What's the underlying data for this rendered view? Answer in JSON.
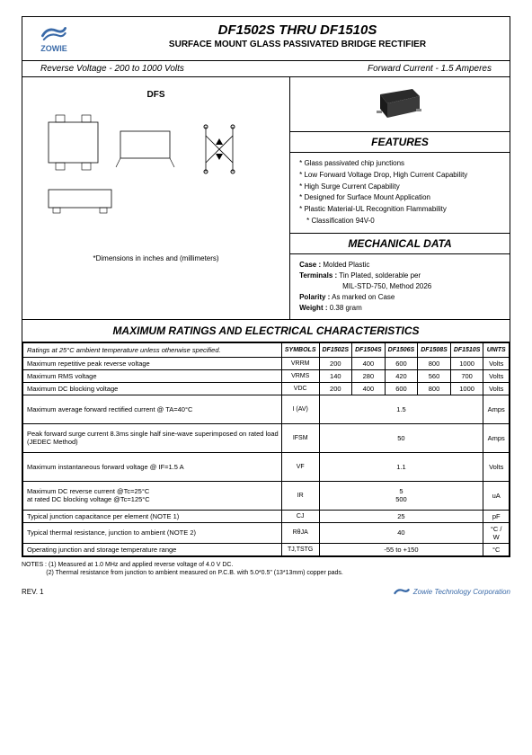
{
  "logo": {
    "brand": "ZOWIE",
    "color": "#3a6aa8"
  },
  "header": {
    "title": "DF1502S  THRU  DF1510S",
    "subtitle": "SURFACE MOUNT GLASS PASSIVATED BRIDGE  RECTIFIER",
    "rev_voltage": "Reverse Voltage - 200 to 1000 Volts",
    "fwd_current": "Forward Current - 1.5 Amperes"
  },
  "package_label": "DFS",
  "dim_note": "*Dimensions in inches and (millimeters)",
  "sections": {
    "features": "FEATURES",
    "mechanical": "MECHANICAL DATA",
    "ratings": "MAXIMUM RATINGS AND ELECTRICAL CHARACTERISTICS"
  },
  "features": [
    "Glass passivated chip junctions",
    "Low Forward Voltage Drop, High Current Capability",
    "High Surge Current Capability",
    "Designed for Surface Mount Application",
    "Plastic Material-UL Recognition Flammability",
    "Classification 94V-0"
  ],
  "mechanical": {
    "case_lbl": "Case :",
    "case": "Molded Plastic",
    "term_lbl": "Terminals :",
    "term": "Tin Plated, solderable per",
    "term2": "MIL-STD-750, Method 2026",
    "pol_lbl": "Polarity :",
    "pol": "As marked on Case",
    "wt_lbl": "Weight :",
    "wt": "0.38 gram"
  },
  "ratings": {
    "note": "Ratings at 25°C ambient temperature unless otherwise specified.",
    "cols": [
      "SYMBOLS",
      "DF1502S",
      "DF1504S",
      "DF1506S",
      "DF1508S",
      "DF1510S",
      "UNITS"
    ],
    "rows": [
      {
        "p": "Maximum repetitive peak reverse voltage",
        "s": "VRRM",
        "v": [
          "200",
          "400",
          "600",
          "800",
          "1000"
        ],
        "u": "Volts"
      },
      {
        "p": "Maximum RMS voltage",
        "s": "VRMS",
        "v": [
          "140",
          "280",
          "420",
          "560",
          "700"
        ],
        "u": "Volts"
      },
      {
        "p": "Maximum DC blocking voltage",
        "s": "VDC",
        "v": [
          "200",
          "400",
          "600",
          "800",
          "1000"
        ],
        "u": "Volts"
      },
      {
        "p": "Maximum average forward rectified current @ TA=40°C",
        "s": "I (AV)",
        "span": "1.5",
        "u": "Amps",
        "tall": true
      },
      {
        "p": "Peak forward surge current 8.3ms single half sine-wave superimposed on rated load (JEDEC Method)",
        "s": "IFSM",
        "span": "50",
        "u": "Amps",
        "tall": true
      },
      {
        "p": "Maximum instantaneous forward voltage @ IF=1.5 A",
        "s": "VF",
        "span": "1.1",
        "u": "Volts",
        "tall": true
      },
      {
        "p": "Maximum DC reverse current            @Tc=25°C\nat rated DC blocking voltage           @Tc=125°C",
        "s": "IR",
        "span": "5\n500",
        "u": "uA",
        "tall": true,
        "twoLine": true
      },
      {
        "p": "Typical junction capacitance  per element (NOTE 1)",
        "s": "CJ",
        "span": "25",
        "u": "pF"
      },
      {
        "p": "Typical thermal resistance, junction to ambient (NOTE 2)",
        "s": "RθJA",
        "span": "40",
        "u": "°C / W"
      },
      {
        "p": "Operating junction and storage temperature range",
        "s": "TJ,TSTG",
        "span": "-55 to +150",
        "u": "°C"
      }
    ]
  },
  "notes_label": "NOTES :",
  "notes": [
    "(1) Measured at 1.0 MHz and applied reverse voltage of 4.0 V DC.",
    "(2) Thermal resistance from junction to ambient measured on P.C.B. with 5.0*0.5\" (13*13mm) copper pads."
  ],
  "footer": {
    "rev": "REV. 1",
    "corp": "Zowie Technology Corporation"
  }
}
